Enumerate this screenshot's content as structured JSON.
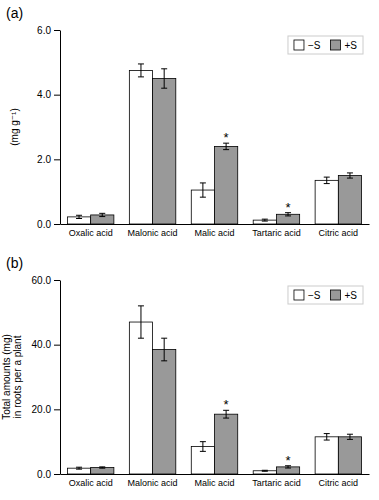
{
  "chart_data": [
    {
      "type": "bar",
      "title": "(a)",
      "ylabel": "(mg g⁻¹)",
      "categories": [
        "Oxalic acid",
        "Malonic acid",
        "Malic acid",
        "Tartaric acid",
        "Citric acid"
      ],
      "series": [
        {
          "name": "−S",
          "color": "#ffffff",
          "values": [
            0.22,
            4.75,
            1.05,
            0.12,
            1.35
          ],
          "errors": [
            0.05,
            0.2,
            0.22,
            0.03,
            0.1
          ]
        },
        {
          "name": "+S",
          "color": "#999999",
          "values": [
            0.28,
            4.5,
            2.4,
            0.3,
            1.5
          ],
          "errors": [
            0.05,
            0.3,
            0.1,
            0.05,
            0.08
          ]
        }
      ],
      "ylim": [
        0,
        6.0
      ],
      "yticks": [
        {
          "value": 0,
          "label": "0.0"
        },
        {
          "value": 2,
          "label": "2.0"
        },
        {
          "value": 4,
          "label": "4.0"
        },
        {
          "value": 6,
          "label": "6.0"
        }
      ],
      "annotations": [
        {
          "text": "*",
          "category": "Malic acid",
          "series": "+S"
        },
        {
          "text": "*",
          "category": "Tartaric acid",
          "series": "+S"
        }
      ],
      "legend": "upper right",
      "grid": false
    },
    {
      "type": "bar",
      "title": "(b)",
      "ylabel": "Total amounts (mg)\nin roots per a plant",
      "categories": [
        "Oxalic acid",
        "Malonic acid",
        "Malic acid",
        "Tartaric acid",
        "Citric acid"
      ],
      "series": [
        {
          "name": "−S",
          "color": "#ffffff",
          "values": [
            1.8,
            47.0,
            8.5,
            1.0,
            11.5
          ],
          "errors": [
            0.3,
            5.0,
            1.5,
            0.15,
            1.0
          ]
        },
        {
          "name": "+S",
          "color": "#999999",
          "values": [
            2.0,
            38.5,
            18.5,
            2.2,
            11.5
          ],
          "errors": [
            0.2,
            3.5,
            1.2,
            0.35,
            0.8
          ]
        }
      ],
      "ylim": [
        0,
        60.0
      ],
      "yticks": [
        {
          "value": 0,
          "label": "0.0"
        },
        {
          "value": 20,
          "label": "20.0"
        },
        {
          "value": 40,
          "label": "40.0"
        },
        {
          "value": 60,
          "label": "60.0"
        }
      ],
      "annotations": [
        {
          "text": "*",
          "category": "Malic acid",
          "series": "+S"
        },
        {
          "text": "*",
          "category": "Tartaric acid",
          "series": "+S"
        }
      ],
      "legend": "upper right",
      "grid": false
    }
  ]
}
